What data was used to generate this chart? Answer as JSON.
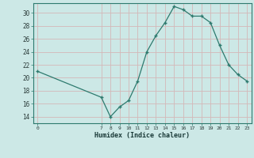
{
  "x": [
    0,
    7,
    8,
    9,
    10,
    11,
    12,
    13,
    14,
    15,
    16,
    17,
    18,
    19,
    20,
    21,
    22,
    23
  ],
  "y": [
    21,
    17,
    14,
    15.5,
    16.5,
    19.5,
    24,
    26.5,
    28.5,
    31,
    30.5,
    29.5,
    29.5,
    28.5,
    25,
    22,
    20.5,
    19.5
  ],
  "xlabel": "Humidex (Indice chaleur)",
  "bg_color": "#cce8e6",
  "line_color": "#2d7a6e",
  "marker_color": "#2d7a6e",
  "ytick_vals": [
    14,
    16,
    18,
    20,
    22,
    24,
    26,
    28,
    30
  ],
  "xtick_vals": [
    0,
    7,
    8,
    9,
    10,
    11,
    12,
    13,
    14,
    15,
    16,
    17,
    18,
    19,
    20,
    21,
    22,
    23
  ],
  "ylim": [
    13.0,
    31.5
  ],
  "xlim": [
    -0.5,
    23.5
  ],
  "grid_pink": "#d4b8b8",
  "grid_light": "#b8d8d4"
}
